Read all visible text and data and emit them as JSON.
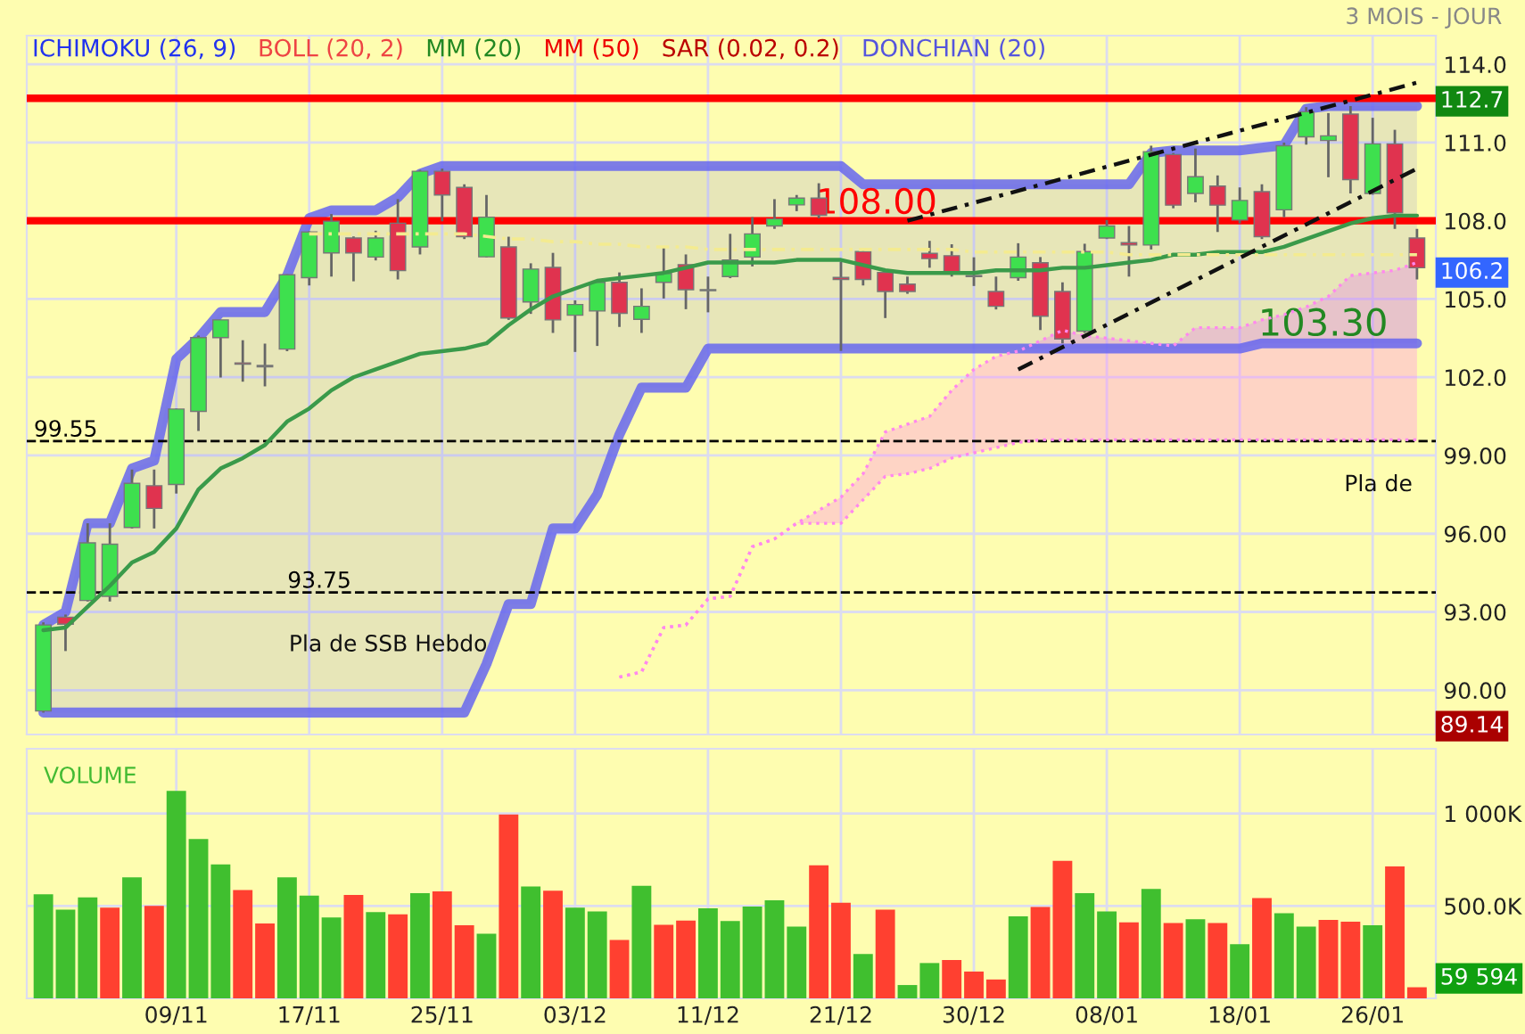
{
  "chart_data": [
    {
      "type": "candlestick",
      "subtitle": "3 MOIS - JOUR",
      "categories": [
        null,
        null,
        null,
        null,
        null,
        null,
        null,
        null,
        null,
        null,
        null,
        null,
        null,
        null,
        null,
        null,
        null,
        null,
        null,
        null,
        null,
        null,
        null,
        null,
        null,
        null,
        null,
        null,
        null,
        null,
        null,
        null,
        null,
        null,
        null,
        null,
        null,
        null,
        null,
        null,
        null,
        null,
        null,
        null,
        null,
        null,
        null,
        null,
        null,
        null,
        null,
        null,
        null,
        null,
        null,
        null,
        null,
        null,
        null,
        null,
        null,
        null,
        null
      ],
      "ohlc": [
        [
          89.2,
          92.6,
          89.14,
          92.5
        ],
        [
          92.8,
          92.9,
          91.5,
          92.53
        ],
        [
          93.44,
          96.4,
          93.4,
          95.65
        ],
        [
          93.6,
          96.4,
          93.4,
          95.6
        ],
        [
          96.24,
          98.46,
          96.2,
          97.93
        ],
        [
          97.84,
          98.46,
          96.2,
          96.97
        ],
        [
          97.89,
          100.8,
          97.54,
          100.78
        ],
        [
          100.69,
          103.6,
          99.94,
          103.52
        ],
        [
          103.52,
          104.2,
          101.99,
          104.2
        ],
        [
          102.55,
          103.42,
          101.83,
          102.5
        ],
        [
          102.4,
          103.29,
          101.65,
          102.45
        ],
        [
          103.08,
          105.95,
          103.0,
          105.93
        ],
        [
          105.82,
          107.6,
          105.52,
          107.57
        ],
        [
          106.77,
          108.26,
          105.86,
          107.98
        ],
        [
          107.34,
          107.4,
          105.68,
          106.77
        ],
        [
          106.61,
          107.62,
          106.48,
          107.34
        ],
        [
          107.91,
          108.83,
          105.75,
          106.09
        ],
        [
          107.0,
          109.95,
          106.71,
          109.9
        ],
        [
          109.9,
          110.0,
          107.98,
          108.99
        ],
        [
          109.28,
          109.4,
          107.3,
          107.39
        ],
        [
          106.62,
          108.99,
          106.6,
          108.14
        ],
        [
          107.0,
          107.39,
          104.2,
          104.27
        ],
        [
          104.89,
          106.37,
          104.43,
          106.15
        ],
        [
          106.21,
          106.77,
          103.7,
          104.2
        ],
        [
          104.38,
          104.95,
          102.97,
          104.79
        ],
        [
          104.54,
          105.7,
          103.2,
          105.64
        ],
        [
          105.64,
          106.02,
          103.93,
          104.45
        ],
        [
          104.22,
          105.41,
          103.7,
          104.72
        ],
        [
          105.64,
          107.0,
          105.02,
          105.98
        ],
        [
          106.32,
          106.71,
          104.61,
          105.36
        ],
        [
          105.32,
          105.86,
          104.49,
          105.36
        ],
        [
          105.86,
          107.5,
          105.8,
          106.5
        ],
        [
          106.61,
          108.14,
          106.25,
          107.5
        ],
        [
          107.8,
          108.83,
          107.69,
          108.07
        ],
        [
          108.61,
          108.99,
          108.37,
          108.87
        ],
        [
          108.87,
          109.44,
          108.1,
          108.21
        ],
        [
          105.83,
          106.43,
          103.01,
          105.75
        ],
        [
          106.82,
          106.9,
          105.52,
          105.75
        ],
        [
          106.02,
          106.1,
          104.27,
          105.29
        ],
        [
          105.57,
          105.86,
          105.2,
          105.29
        ],
        [
          106.75,
          107.23,
          106.2,
          106.55
        ],
        [
          106.66,
          107.1,
          105.86,
          105.98
        ],
        [
          105.9,
          106.6,
          105.5,
          105.86
        ],
        [
          105.29,
          105.86,
          104.6,
          104.72
        ],
        [
          105.82,
          107.14,
          105.7,
          106.61
        ],
        [
          106.39,
          106.61,
          103.81,
          104.34
        ],
        [
          105.29,
          105.64,
          103.3,
          103.47
        ],
        [
          103.77,
          107.12,
          103.7,
          106.82
        ],
        [
          107.34,
          108.03,
          107.3,
          107.8
        ],
        [
          107.16,
          107.8,
          105.86,
          107.07
        ],
        [
          107.07,
          110.88,
          106.9,
          110.65
        ],
        [
          110.54,
          110.6,
          108.48,
          108.6
        ],
        [
          109.05,
          110.77,
          108.71,
          109.69
        ],
        [
          109.33,
          109.74,
          107.57,
          108.6
        ],
        [
          108.03,
          109.28,
          107.9,
          108.78
        ],
        [
          109.12,
          109.4,
          107.3,
          107.39
        ],
        [
          108.42,
          111.0,
          108.14,
          110.88
        ],
        [
          111.22,
          112.36,
          110.92,
          112.18
        ],
        [
          111.08,
          112.13,
          109.67,
          111.26
        ],
        [
          112.09,
          112.4,
          109.05,
          109.58
        ],
        [
          109.05,
          111.95,
          109.0,
          110.95
        ],
        [
          110.95,
          111.49,
          107.69,
          108.3
        ],
        [
          107.34,
          107.69,
          105.75,
          106.2
        ]
      ],
      "colors": [
        "#3ee04e",
        "#e0334f",
        "#3ee04e",
        "#3ee04e",
        "#3ee04e",
        "#e0334f",
        "#3ee04e",
        "#3ee04e",
        "#3ee04e",
        "#e0334f",
        "#3ee04e",
        "#3ee04e",
        "#3ee04e",
        "#3ee04e",
        "#e0334f",
        "#3ee04e",
        "#e0334f",
        "#3ee04e",
        "#e0334f",
        "#e0334f",
        "#3ee04e",
        "#e0334f",
        "#3ee04e",
        "#e0334f",
        "#3ee04e",
        "#3ee04e",
        "#e0334f",
        "#3ee04e",
        "#3ee04e",
        "#e0334f",
        "#3ee04e",
        "#3ee04e",
        "#3ee04e",
        "#3ee04e",
        "#3ee04e",
        "#e0334f",
        "#e0334f",
        "#e0334f",
        "#e0334f",
        "#e0334f",
        "#e0334f",
        "#e0334f",
        "#e0334f",
        "#e0334f",
        "#3ee04e",
        "#e0334f",
        "#e0334f",
        "#3ee04e",
        "#3ee04e",
        "#e0334f",
        "#3ee04e",
        "#e0334f",
        "#3ee04e",
        "#e0334f",
        "#3ee04e",
        "#e0334f",
        "#3ee04e",
        "#3ee04e",
        "#3ee04e",
        "#e0334f",
        "#3ee04e",
        "#e0334f",
        "#e0334f"
      ],
      "series": [
        {
          "type": "line",
          "color": "#ff88ee",
          "line_style": "dotted",
          "values": [
            null,
            null,
            null,
            null,
            null,
            null,
            null,
            null,
            null,
            null,
            null,
            null,
            null,
            null,
            null,
            null,
            null,
            null,
            null,
            null,
            null,
            null,
            null,
            null,
            null,
            null,
            90.5,
            90.7,
            92.4,
            92.5,
            93.5,
            93.6,
            95.5,
            95.8,
            96.4,
            96.9,
            97.4,
            98.3,
            99.9,
            100.2,
            100.5,
            101.5,
            102.3,
            102.8,
            103.0,
            103.4,
            103.8,
            103.6,
            103.5,
            103.4,
            103.3,
            103.2,
            103.9,
            103.9,
            103.9,
            104.2,
            104.4,
            104.7,
            105.1,
            105.9,
            106.0,
            106.1,
            106.4
          ]
        },
        {
          "type": "line",
          "color": "#ff88ee",
          "line_style": "dotted",
          "values": [
            null,
            null,
            null,
            null,
            null,
            null,
            null,
            null,
            null,
            null,
            null,
            null,
            null,
            null,
            null,
            null,
            null,
            null,
            null,
            null,
            null,
            null,
            null,
            null,
            null,
            null,
            90.5,
            90.7,
            92.4,
            92.5,
            93.5,
            93.6,
            95.5,
            95.8,
            96.4,
            96.4,
            96.4,
            97.3,
            98.2,
            98.3,
            98.5,
            98.9,
            99.1,
            99.3,
            99.5,
            99.6,
            99.6,
            99.6,
            99.6,
            99.6,
            99.6,
            99.6,
            99.6,
            99.6,
            99.6,
            99.6,
            99.6,
            99.6,
            99.6,
            99.6,
            99.6,
            99.6,
            99.6
          ]
        },
        {
          "type": "line",
          "color": "#3a9a4a",
          "line_style": "solid",
          "values": [
            92.3,
            92.4,
            93.2,
            94.0,
            94.9,
            95.3,
            96.2,
            97.7,
            98.5,
            98.9,
            99.4,
            100.3,
            100.8,
            101.5,
            102.0,
            102.3,
            102.6,
            102.9,
            103.0,
            103.1,
            103.3,
            104.0,
            104.6,
            105.1,
            105.4,
            105.7,
            105.8,
            105.9,
            106.0,
            106.2,
            106.4,
            106.4,
            106.4,
            106.4,
            106.5,
            106.5,
            106.5,
            106.3,
            106.1,
            106.0,
            106.0,
            106.0,
            106.0,
            106.1,
            106.1,
            106.1,
            106.2,
            106.2,
            106.3,
            106.4,
            106.5,
            106.7,
            106.7,
            106.8,
            106.8,
            106.8,
            107.0,
            107.3,
            107.6,
            107.9,
            108.1,
            108.2,
            108.2
          ]
        },
        {
          "type": "area",
          "color": "#6666ee",
          "line_style": "solid",
          "values": [
            92.5,
            93.0,
            96.4,
            96.4,
            98.5,
            98.8,
            102.7,
            103.5,
            104.5,
            104.5,
            104.5,
            105.9,
            108.1,
            108.4,
            108.4,
            108.4,
            108.9,
            109.8,
            110.1,
            110.1,
            110.1,
            110.1,
            110.1,
            110.1,
            110.1,
            110.1,
            110.1,
            110.1,
            110.1,
            110.1,
            110.1,
            110.1,
            110.1,
            110.1,
            110.1,
            110.1,
            110.1,
            109.4,
            109.4,
            109.4,
            109.4,
            109.4,
            109.4,
            109.4,
            109.4,
            109.4,
            109.4,
            109.4,
            109.4,
            109.4,
            110.6,
            110.7,
            110.7,
            110.7,
            110.7,
            110.8,
            110.9,
            112.3,
            112.4,
            112.4,
            112.4,
            112.4,
            112.4
          ]
        },
        {
          "type": "line",
          "color": "#6666ee",
          "line_style": "solid",
          "values": [
            89.14,
            89.14,
            89.14,
            89.14,
            89.14,
            89.14,
            89.14,
            89.14,
            89.14,
            89.14,
            89.14,
            89.14,
            89.14,
            89.14,
            89.14,
            89.14,
            89.14,
            89.14,
            89.14,
            89.14,
            91.0,
            93.3,
            93.3,
            96.2,
            96.2,
            97.5,
            99.8,
            101.6,
            101.6,
            101.6,
            103.1,
            103.1,
            103.1,
            103.1,
            103.1,
            103.1,
            103.1,
            103.1,
            103.1,
            103.1,
            103.1,
            103.1,
            103.1,
            103.1,
            103.1,
            103.1,
            103.1,
            103.1,
            103.1,
            103.1,
            103.1,
            103.1,
            103.1,
            103.1,
            103.1,
            103.3,
            103.3,
            103.3,
            103.3,
            103.3,
            103.3,
            103.3,
            103.3
          ]
        },
        {
          "type": "line",
          "color": "#f4eb90",
          "line_style": "dashed",
          "values": [
            null,
            null,
            null,
            null,
            null,
            null,
            null,
            null,
            null,
            null,
            null,
            null,
            107.5,
            107.5,
            107.5,
            107.5,
            107.5,
            107.5,
            107.5,
            107.5,
            107.4,
            107.3,
            107.3,
            107.2,
            107.2,
            107.1,
            107.1,
            107.0,
            107.0,
            107.0,
            106.9,
            106.9,
            106.9,
            106.9,
            106.9,
            106.9,
            106.9,
            106.9,
            106.9,
            106.9,
            106.9,
            106.9,
            106.8,
            106.8,
            106.8,
            106.8,
            106.8,
            106.8,
            106.8,
            106.7,
            106.7,
            106.7,
            106.7,
            106.7,
            106.7,
            106.7,
            106.7,
            106.7,
            106.7,
            106.7,
            106.7,
            106.7,
            106.7
          ]
        },
        {
          "type": "line",
          "color": "#111111",
          "line_style": "dashed",
          "values": [
            null,
            null,
            null,
            null,
            null,
            null,
            null,
            null,
            null,
            null,
            null,
            null,
            null,
            null,
            null,
            null,
            null,
            null,
            null,
            null,
            null,
            null,
            null,
            null,
            null,
            null,
            null,
            null,
            null,
            null,
            null,
            null,
            null,
            null,
            null,
            null,
            null,
            null,
            null,
            108.0,
            null,
            null,
            null,
            null,
            null,
            null,
            null,
            null,
            null,
            null,
            null,
            null,
            null,
            null,
            null,
            null,
            null,
            null,
            null,
            null,
            null,
            null,
            113.3
          ]
        },
        {
          "type": "line",
          "color": "#111111",
          "line_style": "dashed",
          "values": [
            null,
            null,
            null,
            null,
            null,
            null,
            null,
            null,
            null,
            null,
            null,
            null,
            null,
            null,
            null,
            null,
            null,
            null,
            null,
            null,
            null,
            null,
            null,
            null,
            null,
            null,
            null,
            null,
            null,
            null,
            null,
            null,
            null,
            null,
            null,
            null,
            null,
            null,
            null,
            null,
            null,
            null,
            null,
            null,
            102.3,
            null,
            null,
            null,
            null,
            null,
            null,
            null,
            null,
            null,
            null,
            null,
            null,
            null,
            null,
            null,
            null,
            null,
            110.0
          ]
        }
      ],
      "ref_lines": [
        {
          "axis": "y",
          "value": 112.7,
          "color": "#ff0000",
          "line_style": "solid"
        },
        {
          "axis": "y",
          "value": 108.0,
          "label": "108.00",
          "color": "#ff0000",
          "line_style": "solid"
        },
        {
          "axis": "y",
          "value": 99.55,
          "label": "99.55",
          "color": "#000000",
          "line_style": "dashed"
        },
        {
          "axis": "y",
          "value": 93.75,
          "label": "93.75",
          "color": "#000000",
          "line_style": "dashed"
        }
      ],
      "annotations": [
        "ICHIMOKU (26, 9)",
        "BOLL (20, 2)",
        "MM (20)",
        "MM (50)",
        "SAR (0.02, 0.2)",
        "DONCHIAN (20)",
        "Pla de SSB Hebdo",
        "Pla de",
        "112.7",
        "106.2",
        "89.14",
        {
          "text": "103.30",
          "y": 103.3
        }
      ],
      "ylim": [
        88.3,
        115.1
      ],
      "yticks": [
        {
          "value": 90,
          "label": "90.00"
        },
        {
          "value": 93,
          "label": "93.00"
        },
        {
          "value": 96,
          "label": "96.00"
        },
        {
          "value": 99,
          "label": "99.00"
        },
        {
          "value": 102,
          "label": "102.0"
        },
        {
          "value": 105,
          "label": "105.0"
        },
        {
          "value": 108,
          "label": "108.0"
        },
        {
          "value": 111,
          "label": "111.0"
        },
        {
          "value": 114,
          "label": "114.0"
        }
      ],
      "grid": true,
      "tick_labels": "y"
    },
    {
      "type": "bar",
      "title": "VOLUME",
      "categories": [
        null,
        null,
        null,
        null,
        null,
        null,
        "09/11",
        null,
        null,
        null,
        null,
        null,
        "17/11",
        null,
        null,
        null,
        null,
        null,
        "25/11",
        null,
        null,
        null,
        null,
        null,
        "03/12",
        null,
        null,
        null,
        null,
        null,
        "11/12",
        null,
        null,
        null,
        null,
        null,
        "21/12",
        null,
        null,
        null,
        null,
        null,
        "30/12",
        null,
        null,
        null,
        null,
        null,
        "08/01",
        null,
        null,
        null,
        null,
        null,
        "18/01",
        null,
        null,
        null,
        null,
        null,
        "26/01",
        null,
        null
      ],
      "values": [
        563,
        480,
        546,
        490,
        655,
        500,
        1122,
        862,
        724,
        586,
        405,
        655,
        556,
        438,
        559,
        467,
        454,
        569,
        579,
        395,
        349,
        994,
        605,
        582,
        490,
        470,
        316,
        609,
        398,
        421,
        487,
        418,
        497,
        530,
        388,
        720,
        517,
        240,
        480,
        72,
        191,
        207,
        145,
        102,
        444,
        494,
        744,
        569,
        470,
        411,
        592,
        408,
        428,
        408,
        293,
        543,
        461,
        388,
        424,
        415,
        395,
        714,
        60
      ],
      "colors": [
        "#40bf2f",
        "#40bf2f",
        "#40bf2f",
        "#ff4030",
        "#40bf2f",
        "#ff4030",
        "#40bf2f",
        "#40bf2f",
        "#40bf2f",
        "#ff4030",
        "#ff4030",
        "#40bf2f",
        "#40bf2f",
        "#40bf2f",
        "#ff4030",
        "#40bf2f",
        "#ff4030",
        "#40bf2f",
        "#ff4030",
        "#ff4030",
        "#40bf2f",
        "#ff4030",
        "#40bf2f",
        "#ff4030",
        "#40bf2f",
        "#40bf2f",
        "#ff4030",
        "#40bf2f",
        "#ff4030",
        "#ff4030",
        "#40bf2f",
        "#40bf2f",
        "#40bf2f",
        "#40bf2f",
        "#40bf2f",
        "#ff4030",
        "#ff4030",
        "#40bf2f",
        "#ff4030",
        "#40bf2f",
        "#40bf2f",
        "#ff4030",
        "#ff4030",
        "#ff4030",
        "#40bf2f",
        "#ff4030",
        "#ff4030",
        "#40bf2f",
        "#40bf2f",
        "#ff4030",
        "#40bf2f",
        "#ff4030",
        "#40bf2f",
        "#ff4030",
        "#40bf2f",
        "#ff4030",
        "#40bf2f",
        "#40bf2f",
        "#ff4030",
        "#ff4030",
        "#40bf2f",
        "#ff4030",
        "#ff4030"
      ],
      "annotations": [
        "59 594"
      ],
      "ylim": [
        0,
        1350
      ],
      "yticks": [
        {
          "value": 500,
          "label": "500.0K"
        },
        {
          "value": 1000,
          "label": "1 000K"
        }
      ],
      "grid": true
    }
  ]
}
